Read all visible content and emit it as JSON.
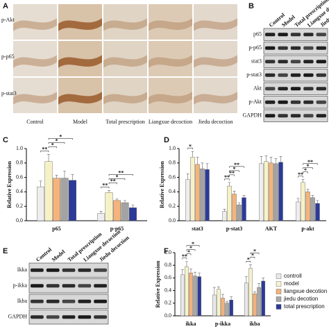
{
  "panel_labels": [
    "A",
    "B",
    "C",
    "D",
    "E",
    "F"
  ],
  "panel_a": {
    "row_labels": [
      "p-Akt",
      "p-p65",
      "p-stat3"
    ],
    "col_labels": [
      "Control",
      "Model",
      "Total prescription",
      "Liangxue decoction",
      "Jiedu decoction"
    ]
  },
  "panel_b": {
    "lanes": [
      "Control",
      "Model",
      "Total prescription",
      "Liangxue decoction",
      "Jiedu decoction"
    ],
    "bands": [
      "p65",
      "p-p65",
      "stat3",
      "p-stat3",
      "Akt",
      "p-Akt",
      "GAPDH"
    ]
  },
  "panel_e": {
    "lanes": [
      "Control",
      "Model",
      "Total prescription",
      "Liangxue decoction",
      "Jiedu decoction"
    ],
    "bands": [
      "Ikka",
      "p-ikka",
      "Ikba",
      "GAPDH"
    ]
  },
  "chart_data": [
    {
      "type": "bar",
      "y_label": "Relative Expression",
      "categories": [
        "p65",
        "p-p65"
      ],
      "series": [
        {
          "color": "#eeeeee",
          "values": [
            0.47,
            0.1
          ],
          "errors": [
            0.08,
            0.03
          ]
        },
        {
          "color": "#f7f2c6",
          "values": [
            0.82,
            0.39
          ],
          "errors": [
            0.1,
            0.03
          ]
        },
        {
          "color": "#f4b47c",
          "values": [
            0.59,
            0.28
          ],
          "errors": [
            0.04,
            0.02
          ]
        },
        {
          "color": "#a3a3a3",
          "values": [
            0.59,
            0.25
          ],
          "errors": [
            0.1,
            0.03
          ]
        },
        {
          "color": "#2b3a98",
          "values": [
            0.56,
            0.18
          ],
          "errors": [
            0.08,
            0.04
          ]
        }
      ],
      "ylim": [
        0,
        1
      ],
      "yticks": [
        {
          "value": 0,
          "label": "0.0"
        },
        0.2,
        0.4,
        0.6,
        0.8,
        {
          "value": 1,
          "label": "1.0"
        }
      ],
      "annotations": [
        "**",
        "*",
        "*",
        "*",
        "**",
        "**",
        "*",
        "**"
      ]
    },
    {
      "type": "bar",
      "y_label": "Relative Expression",
      "categories": [
        "stat3",
        "p-stat3",
        "AKT",
        "p-akt"
      ],
      "series": [
        {
          "color": "#eeeeee",
          "values": [
            0.57,
            0.13,
            0.79,
            0.26
          ],
          "errors": [
            0.08,
            0.03,
            0.1,
            0.05
          ]
        },
        {
          "color": "#f7f2c6",
          "values": [
            0.88,
            0.48,
            0.82,
            0.53
          ],
          "errors": [
            0.08,
            0.05,
            0.08,
            0.04
          ]
        },
        {
          "color": "#f4b47c",
          "values": [
            0.78,
            0.37,
            0.8,
            0.4
          ],
          "errors": [
            0.1,
            0.04,
            0.08,
            0.04
          ]
        },
        {
          "color": "#a3a3a3",
          "values": [
            0.72,
            0.22,
            0.79,
            0.32
          ],
          "errors": [
            0.08,
            0.03,
            0.07,
            0.03
          ]
        },
        {
          "color": "#2b3a98",
          "values": [
            0.71,
            0.32,
            0.81,
            0.24
          ],
          "errors": [
            0.08,
            0.03,
            0.08,
            0.04
          ]
        }
      ],
      "ylim": [
        0,
        1
      ],
      "yticks": [
        {
          "value": 0,
          "label": "0.0"
        },
        0.2,
        0.4,
        0.6,
        0.8,
        {
          "value": 1,
          "label": "1.0"
        }
      ],
      "annotations": [
        "*",
        "**",
        "**",
        "*",
        "**",
        "**",
        "*",
        "*",
        "**"
      ]
    },
    {
      "type": "bar",
      "y_label": "Relative Expression",
      "categories": [
        "ikka",
        "p-ikka",
        "ikba"
      ],
      "series": [
        {
          "name": "controll",
          "color": "#e8e8e8",
          "values": [
            0.65,
            0.33,
            0.52
          ],
          "errors": [
            0.08,
            0.12,
            0.1
          ]
        },
        {
          "name": "model",
          "color": "#f6f2cc",
          "values": [
            0.78,
            0.42,
            0.75
          ],
          "errors": [
            0.08,
            0.04,
            0.06
          ]
        },
        {
          "name": "liangxue decotion",
          "color": "#f3b27a",
          "values": [
            0.68,
            0.28,
            0.35
          ],
          "errors": [
            0.06,
            0.06,
            0.03
          ]
        },
        {
          "name": "jiedu decotion",
          "color": "#a8a8a8",
          "values": [
            0.63,
            0.2,
            0.45
          ],
          "errors": [
            0.06,
            0.03,
            0.06
          ]
        },
        {
          "name": "total prescription",
          "color": "#2b3a96",
          "values": [
            0.62,
            0.25,
            0.55
          ],
          "errors": [
            0.06,
            0.05,
            0.05
          ]
        }
      ],
      "ylim": [
        0,
        1
      ],
      "yticks": [
        {
          "value": 0,
          "label": "0.0"
        },
        0.2,
        0.4,
        0.6,
        0.8,
        {
          "value": 1,
          "label": "1.0"
        }
      ],
      "annotations": [
        "**",
        "*",
        "*",
        "*",
        "*",
        "*",
        "*"
      ]
    }
  ]
}
